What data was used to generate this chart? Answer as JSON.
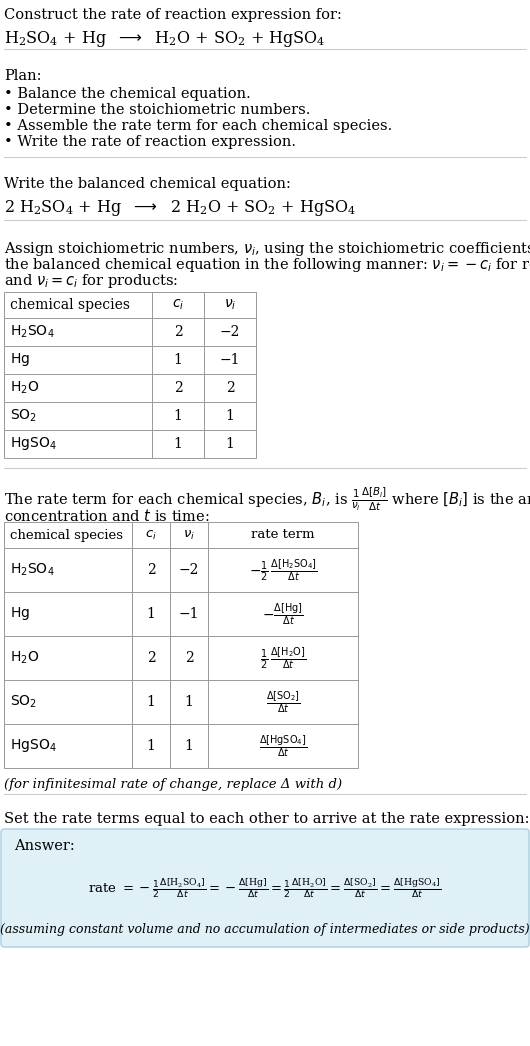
{
  "bg_color": "#ffffff",
  "title_line1": "Construct the rate of reaction expression for:",
  "plan_header": "Plan:",
  "plan_items": [
    "• Balance the chemical equation.",
    "• Determine the stoichiometric numbers.",
    "• Assemble the rate term for each chemical species.",
    "• Write the rate of reaction expression."
  ],
  "balanced_header": "Write the balanced chemical equation:",
  "stoich_intro_lines": [
    "Assign stoichiometric numbers, ν_i, using the stoichiometric coefficients, c_i, from",
    "the balanced chemical equation in the following manner: ν_i = −c_i for reactants",
    "and ν_i = c_i for products:"
  ],
  "table1_rows": [
    [
      "H_2SO_4",
      "2",
      "−2"
    ],
    [
      "Hg",
      "1",
      "−1"
    ],
    [
      "H_2O",
      "2",
      "2"
    ],
    [
      "SO_2",
      "1",
      "1"
    ],
    [
      "HgSO_4",
      "1",
      "1"
    ]
  ],
  "table2_rows": [
    [
      "H_2SO_4",
      "2",
      "−2"
    ],
    [
      "Hg",
      "1",
      "−1"
    ],
    [
      "H_2O",
      "2",
      "2"
    ],
    [
      "SO_2",
      "1",
      "1"
    ],
    [
      "HgSO_4",
      "1",
      "1"
    ]
  ],
  "infinitesimal_note": "(for infinitesimal rate of change, replace Δ with d)",
  "set_equal_text": "Set the rate terms equal to each other to arrive at the rate expression:",
  "answer_box_color": "#dff0f7",
  "answer_label": "Answer:",
  "footnote": "(assuming constant volume and no accumulation of intermediates or side products)"
}
